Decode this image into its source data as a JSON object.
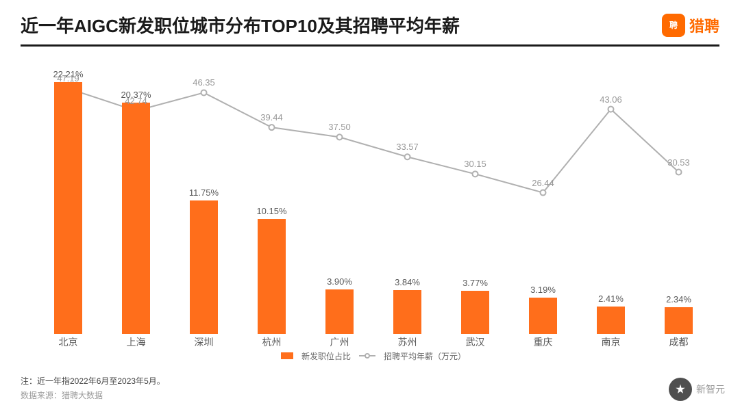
{
  "header": {
    "title": "近一年AIGC新发职位城市分布TOP10及其招聘平均年薪",
    "brand_icon_text": "聘",
    "brand_text": "猎聘"
  },
  "chart": {
    "type": "bar+line",
    "categories": [
      "北京",
      "上海",
      "深圳",
      "杭州",
      "广州",
      "苏州",
      "武汉",
      "重庆",
      "南京",
      "成都"
    ],
    "bar": {
      "values": [
        22.21,
        20.37,
        11.75,
        10.15,
        3.9,
        3.84,
        3.77,
        3.19,
        2.41,
        2.34
      ],
      "labels": [
        "22.21%",
        "20.37%",
        "11.75%",
        "10.15%",
        "3.90%",
        "3.84%",
        "3.77%",
        "3.19%",
        "2.41%",
        "2.34%"
      ],
      "color": "#ff6e1b",
      "width_ratio": 0.42,
      "ymax": 24,
      "label_color": "#595959",
      "label_fontsize": 13
    },
    "line": {
      "values": [
        47.19,
        42.74,
        46.35,
        39.44,
        37.5,
        33.57,
        30.15,
        26.44,
        43.06,
        30.53
      ],
      "labels": [
        "47.19",
        "42.74",
        "46.35",
        "39.44",
        "37.50",
        "33.57",
        "30.15",
        "26.44",
        "43.06",
        "30.53"
      ],
      "color": "#b0b0b0",
      "marker_fill": "#ffffff",
      "marker_stroke": "#b0b0b0",
      "stroke_width": 2,
      "ymin": 20,
      "ymax": 52,
      "label_color": "#999999",
      "label_fontsize": 13
    },
    "category_label_color": "#595959",
    "category_label_fontsize": 14,
    "background_color": "#ffffff"
  },
  "legend": {
    "bar_label": "新发职位占比",
    "line_label": "招聘平均年薪（万元）",
    "bar_color": "#ff6e1b",
    "line_color": "#b0b0b0",
    "text_color": "#666666",
    "fontsize": 12
  },
  "footer": {
    "note": "注：近一年指2022年6月至2023年5月。",
    "source": "数据来源：猎聘大数据"
  },
  "corner_watermark": {
    "text": "新智元",
    "icon_glyph": "🌟",
    "circle_color": "#3d3d3d",
    "text_color": "#8e8e8e"
  }
}
